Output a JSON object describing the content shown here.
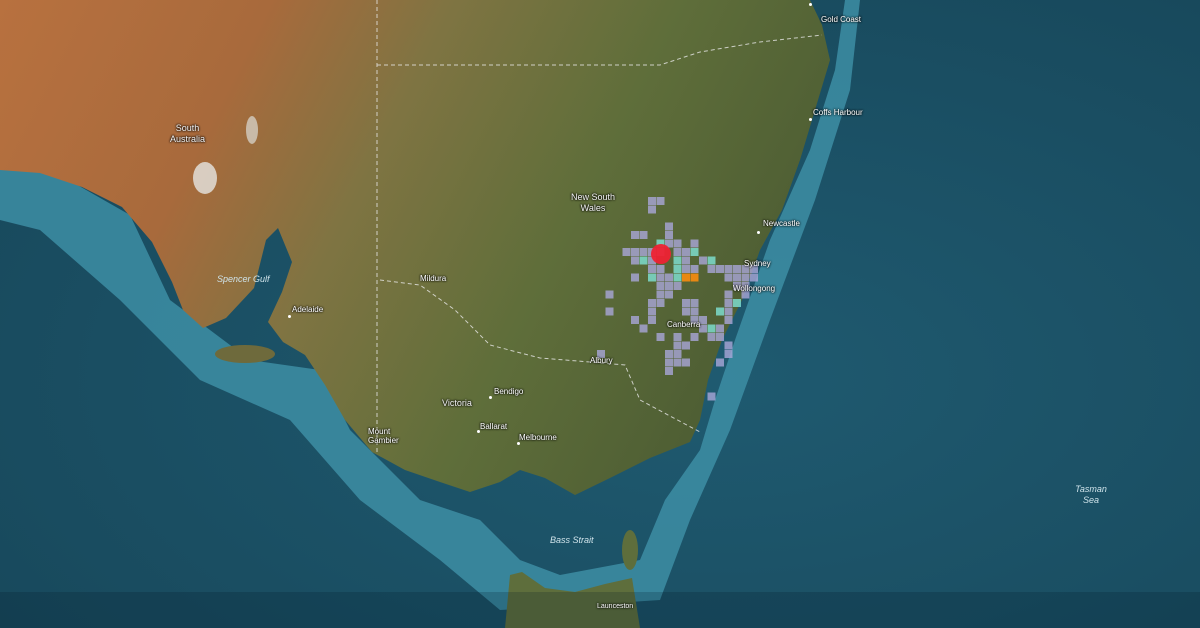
{
  "map": {
    "colors": {
      "ocean_deep": "#1b4f63",
      "ocean_shelf": "#3f93a8",
      "land_arid": "#b36b3c",
      "land_green": "#66753f",
      "heat_low": "#a9a6d8",
      "heat_mid": "#7fe3d6",
      "heat_high": "#f08a12",
      "epicenter": "#ee2233"
    },
    "regions": [
      {
        "name": "South Australia",
        "lines": [
          "South",
          "Australia"
        ]
      },
      {
        "name": "New South Wales",
        "lines": [
          "New South",
          "Wales"
        ]
      },
      {
        "name": "Victoria",
        "lines": [
          "Victoria"
        ]
      }
    ],
    "cities": [
      "Gold Coast",
      "Coffs Harbour",
      "Newcastle",
      "Sydney",
      "Wollongong",
      "Canberra",
      "Mildura",
      "Adelaide",
      "Albury",
      "Bendigo",
      "Ballarat",
      "Melbourne",
      "Mount Gambier",
      "Launceston"
    ],
    "water": [
      "Spencer Gulf",
      "Bass Strait",
      "Tasman Sea"
    ],
    "layers": {
      "heatmap": "felt reports intensity grid",
      "epicenter_marker": "red circle"
    }
  }
}
